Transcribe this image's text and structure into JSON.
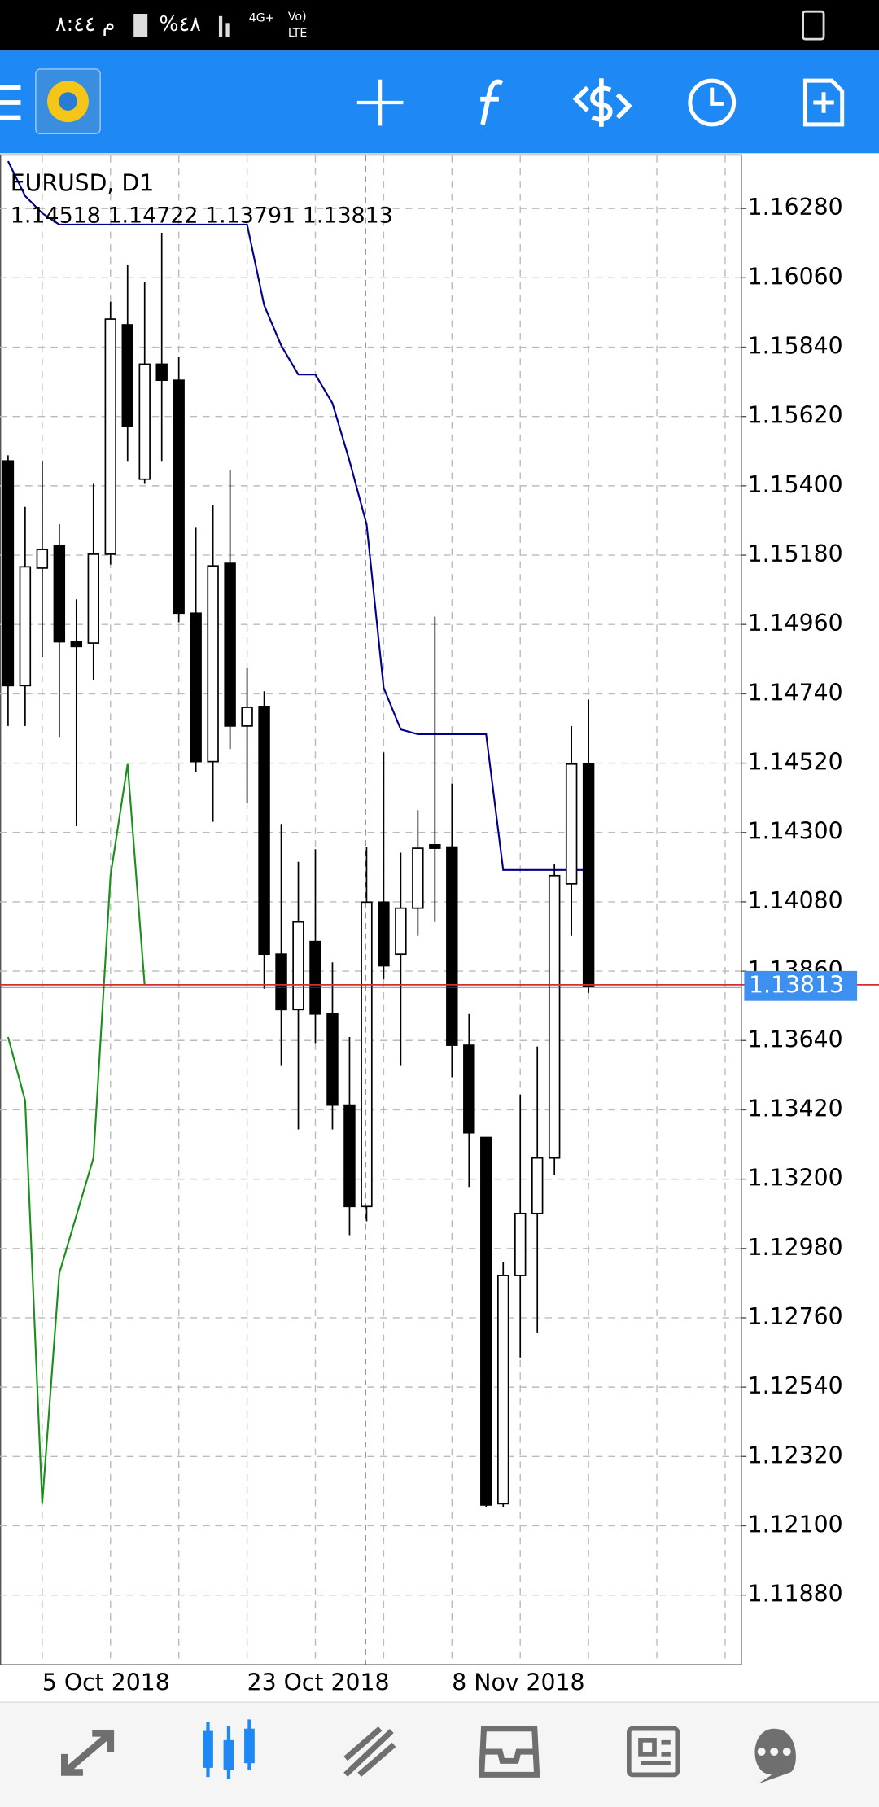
{
  "status_bar": {
    "time": "م ٨:٤٤",
    "battery": "%٤٨",
    "network": "4G+",
    "volte": "Vo)",
    "lte": "LTE"
  },
  "chart_data": {
    "type": "candlestick",
    "title": "EURUSD, D1",
    "subtitle": "1.14518 1.14722 1.13791 1.13813",
    "categories": [
      null,
      null,
      "5 Oct 2018",
      null,
      null,
      null,
      null,
      null,
      null,
      null,
      null,
      null,
      null,
      null,
      "23 Oct 2018",
      null,
      null,
      null,
      null,
      null,
      null,
      null,
      null,
      null,
      null,
      null,
      "8 Nov 2018",
      null,
      null,
      null,
      null,
      null,
      null,
      null,
      null
    ],
    "open": [
      1.15479,
      1.14766,
      1.15139,
      1.15209,
      1.14905,
      1.14901,
      1.15183,
      1.15911,
      1.15421,
      1.15786,
      1.15735,
      1.14996,
      1.14525,
      1.15154,
      1.14638,
      1.147,
      1.13914,
      1.13738,
      1.13954,
      1.13724,
      1.13435,
      1.13113,
      1.14079,
      1.13914,
      1.1406,
      1.14261,
      1.14254,
      1.13625,
      1.13332,
      1.1217,
      1.12894,
      1.13091,
      1.13267,
      1.14137,
      1.14518
    ],
    "high": [
      1.15497,
      1.15333,
      1.15479,
      1.15278,
      1.1504,
      1.15406,
      1.15984,
      1.16101,
      1.16046,
      1.16203,
      1.15808,
      1.15267,
      1.1534,
      1.1545,
      1.14821,
      1.14748,
      1.14327,
      1.14207,
      1.14247,
      1.13888,
      1.13651,
      1.14254,
      1.14554,
      1.14236,
      1.14371,
      1.14985,
      1.14455,
      1.13724,
      1.13332,
      1.12937,
      1.13468,
      1.13621,
      1.14199,
      1.14638,
      1.14722
    ],
    "low": [
      1.14638,
      1.14638,
      1.14857,
      1.14601,
      1.1432,
      1.14784,
      1.1515,
      1.15479,
      1.15406,
      1.15479,
      1.14967,
      1.14492,
      1.14334,
      1.14565,
      1.14393,
      1.13804,
      1.13559,
      1.13358,
      1.13632,
      1.13358,
      1.13022,
      1.13066,
      1.13834,
      1.13559,
      1.13972,
      1.14016,
      1.13523,
      1.13175,
      1.12159,
      1.12159,
      1.12634,
      1.12711,
      1.13212,
      1.13972,
      1.13791
    ],
    "close": [
      1.14766,
      1.15143,
      1.15198,
      1.14905,
      1.1489,
      1.15183,
      1.15929,
      1.15589,
      1.15786,
      1.15735,
      1.14996,
      1.14525,
      1.15146,
      1.14638,
      1.14697,
      1.13914,
      1.13738,
      1.14016,
      1.13724,
      1.13435,
      1.13113,
      1.14079,
      1.13877,
      1.1406,
      1.1425,
      1.1425,
      1.13625,
      1.13347,
      1.12166,
      1.12894,
      1.13091,
      1.13267,
      1.14163,
      1.14517,
      1.13813
    ],
    "up_color": "#ffffff",
    "down_color": "#000000",
    "series": [
      {
        "color": "#00008b",
        "values": [
          1.1643,
          1.1632,
          1.16265,
          1.16229,
          1.16229,
          1.16229,
          1.16229,
          1.16229,
          1.16229,
          1.16229,
          1.16229,
          1.16229,
          1.16229,
          1.16229,
          1.16229,
          1.15973,
          1.15845,
          1.15753,
          1.15753,
          1.15662,
          1.15479,
          1.15278,
          1.14759,
          1.14627,
          1.14612,
          1.14612,
          1.14612,
          1.14612,
          1.14612,
          1.14181,
          1.14181,
          1.14181,
          1.14181,
          1.14181,
          1.14181
        ]
      },
      {
        "color": "#1a8f1a",
        "values": [
          1.13651,
          1.13449,
          1.1217,
          1.12901,
          1.13084,
          1.13267,
          1.14163,
          1.14517,
          1.13815,
          null,
          null,
          null,
          null,
          null,
          null,
          null,
          null,
          null,
          null,
          null,
          null,
          null,
          null,
          null,
          null,
          null,
          null,
          null,
          null,
          null,
          null,
          null,
          null,
          null,
          null
        ]
      }
    ],
    "current_price": {
      "value": 1.13813,
      "label": "1.13813"
    },
    "ylim": [
      1.11661,
      1.16448
    ],
    "yticks": [
      {
        "value": 1.1628,
        "label": "1.16280"
      },
      {
        "value": 1.1606,
        "label": "1.16060"
      },
      {
        "value": 1.1584,
        "label": "1.15840"
      },
      {
        "value": 1.1562,
        "label": "1.15620"
      },
      {
        "value": 1.154,
        "label": "1.15400"
      },
      {
        "value": 1.1518,
        "label": "1.15180"
      },
      {
        "value": 1.1496,
        "label": "1.14960"
      },
      {
        "value": 1.1474,
        "label": "1.14740"
      },
      {
        "value": 1.1452,
        "label": "1.14520"
      },
      {
        "value": 1.143,
        "label": "1.14300"
      },
      {
        "value": 1.1408,
        "label": "1.14080"
      },
      {
        "value": 1.1386,
        "label": "1.13860"
      },
      {
        "value": 1.1364,
        "label": "1.13640"
      },
      {
        "value": 1.1342,
        "label": "1.13420"
      },
      {
        "value": 1.132,
        "label": "1.13200"
      },
      {
        "value": 1.1298,
        "label": "1.12980"
      },
      {
        "value": 1.1276,
        "label": "1.12760"
      },
      {
        "value": 1.1254,
        "label": "1.12540"
      },
      {
        "value": 1.1232,
        "label": "1.12320"
      },
      {
        "value": 1.121,
        "label": "1.12100"
      },
      {
        "value": 1.1188,
        "label": "1.11880"
      }
    ],
    "grid": true
  }
}
